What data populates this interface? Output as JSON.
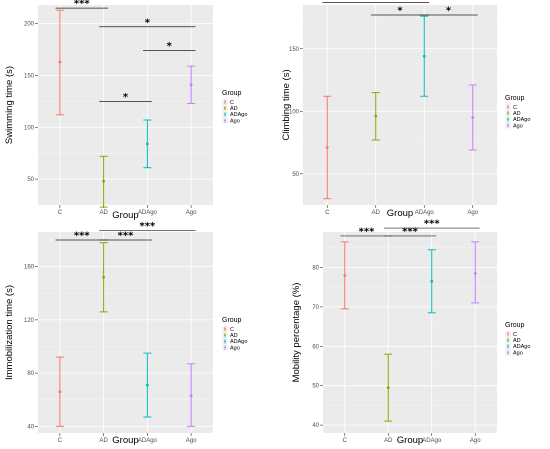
{
  "chart_data": [
    {
      "type": "scatter",
      "ylabel": "Swimming time (s)",
      "xlabel": "Group",
      "categories": [
        "C",
        "AD",
        "ADAgo",
        "Ago"
      ],
      "yticks": [
        50,
        100,
        150,
        200
      ],
      "ylim": [
        25,
        218
      ],
      "points": [
        {
          "group": "C",
          "mean": 163,
          "low": 112,
          "high": 213
        },
        {
          "group": "AD",
          "mean": 48,
          "low": 23,
          "high": 72
        },
        {
          "group": "ADAgo",
          "mean": 84,
          "low": 61,
          "high": 107
        },
        {
          "group": "Ago",
          "mean": 141,
          "low": 123,
          "high": 159
        }
      ],
      "significance": [
        {
          "from": "C",
          "to": "AD",
          "label": "***",
          "y": 215
        },
        {
          "from": "AD",
          "to": "Ago",
          "label": "*",
          "y": 197
        },
        {
          "from": "ADAgo",
          "to": "Ago",
          "label": "*",
          "y": 174
        },
        {
          "from": "AD",
          "to": "ADAgo",
          "label": "*",
          "y": 125
        }
      ],
      "legend": {
        "title": "Group",
        "position": "right",
        "entries": [
          "C",
          "AD",
          "ADAgo",
          "Ago"
        ]
      }
    },
    {
      "type": "scatter",
      "ylabel": "Climbing time (s)",
      "xlabel": "Group",
      "categories": [
        "C",
        "AD",
        "ADAgo",
        "Ago"
      ],
      "yticks": [
        50,
        100,
        150
      ],
      "ylim": [
        25,
        185
      ],
      "points": [
        {
          "group": "C",
          "mean": 71,
          "low": 30,
          "high": 112
        },
        {
          "group": "AD",
          "mean": 96,
          "low": 77,
          "high": 115
        },
        {
          "group": "ADAgo",
          "mean": 144,
          "low": 112,
          "high": 176
        },
        {
          "group": "Ago",
          "mean": 95,
          "low": 69,
          "high": 121
        }
      ],
      "significance": [
        {
          "from": "C",
          "to": "ADAgo",
          "label": "*",
          "y": 187
        },
        {
          "from": "AD",
          "to": "ADAgo",
          "label": "*",
          "y": 177
        },
        {
          "from": "ADAgo",
          "to": "Ago",
          "label": "*",
          "y": 177
        }
      ],
      "legend": {
        "title": "Group",
        "position": "right",
        "entries": [
          "C",
          "AD",
          "ADAgo",
          "Ago"
        ]
      }
    },
    {
      "type": "scatter",
      "ylabel": "Immobilization time (s)",
      "xlabel": "Group",
      "categories": [
        "C",
        "AD",
        "ADAgo",
        "Ago"
      ],
      "yticks": [
        40,
        80,
        120,
        160
      ],
      "ylim": [
        35,
        186
      ],
      "points": [
        {
          "group": "C",
          "mean": 66,
          "low": 40,
          "high": 92
        },
        {
          "group": "AD",
          "mean": 152,
          "low": 126,
          "high": 178
        },
        {
          "group": "ADAgo",
          "mean": 71,
          "low": 47,
          "high": 95
        },
        {
          "group": "Ago",
          "mean": 63,
          "low": 40,
          "high": 87
        }
      ],
      "significance": [
        {
          "from": "C",
          "to": "AD",
          "label": "***",
          "y": 180
        },
        {
          "from": "AD",
          "to": "ADAgo",
          "label": "***",
          "y": 180
        },
        {
          "from": "AD",
          "to": "Ago",
          "label": "***",
          "y": 187
        }
      ],
      "legend": {
        "title": "Group",
        "position": "right",
        "entries": [
          "C",
          "AD",
          "ADAgo",
          "Ago"
        ]
      }
    },
    {
      "type": "scatter",
      "ylabel": "Mobility percentage (%)",
      "xlabel": "Group",
      "categories": [
        "C",
        "AD",
        "ADAgo",
        "Ago"
      ],
      "yticks": [
        40,
        50,
        60,
        70,
        80
      ],
      "ylim": [
        38,
        89
      ],
      "points": [
        {
          "group": "C",
          "mean": 78,
          "low": 69.5,
          "high": 86.5
        },
        {
          "group": "AD",
          "mean": 49.5,
          "low": 41,
          "high": 58
        },
        {
          "group": "ADAgo",
          "mean": 76.5,
          "low": 68.5,
          "high": 84.5
        },
        {
          "group": "Ago",
          "mean": 78.5,
          "low": 71,
          "high": 86.5
        }
      ],
      "significance": [
        {
          "from": "C",
          "to": "AD",
          "label": "***",
          "y": 88
        },
        {
          "from": "AD",
          "to": "ADAgo",
          "label": "***",
          "y": 88
        },
        {
          "from": "AD",
          "to": "Ago",
          "label": "***",
          "y": 90
        }
      ],
      "legend": {
        "title": "Group",
        "position": "right",
        "entries": [
          "C",
          "AD",
          "ADAgo",
          "Ago"
        ]
      }
    }
  ],
  "colors": {
    "C": "#f8766d",
    "AD": "#7cae00",
    "ADAgo": "#00bfc4",
    "Ago": "#c77cff"
  }
}
